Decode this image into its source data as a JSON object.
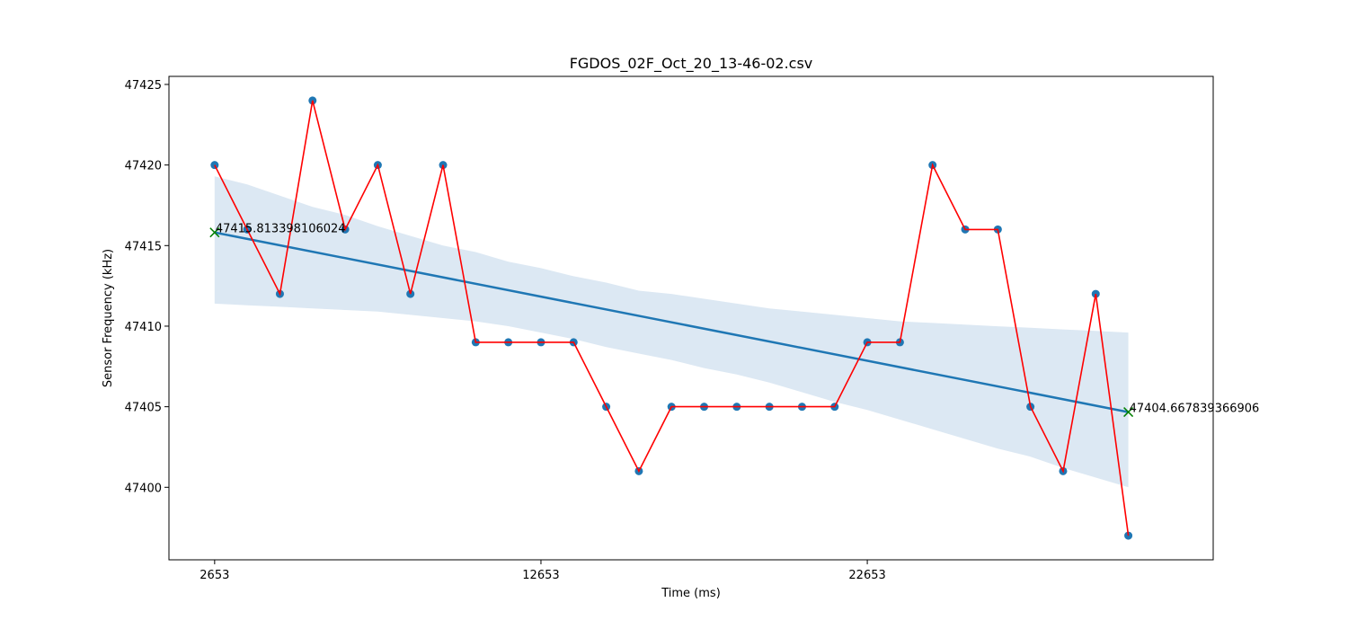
{
  "chart_data": {
    "type": "line",
    "title": "FGDOS_02F_Oct_20_13-46-02.csv",
    "xlabel": "Time (ms)",
    "ylabel": "Sensor Frequency (kHz)",
    "xlim": [
      1253,
      33253
    ],
    "ylim": [
      47395.5,
      47425.5
    ],
    "xticks": [
      2653,
      12653,
      22653
    ],
    "yticks": [
      47400,
      47405,
      47410,
      47415,
      47420,
      47425
    ],
    "x": [
      2653,
      3653,
      4653,
      5653,
      6653,
      7653,
      8653,
      9653,
      10653,
      11653,
      12653,
      13653,
      14653,
      15653,
      16653,
      17653,
      18653,
      19653,
      20653,
      21653,
      22653,
      23653,
      24653,
      25653,
      26653,
      27653,
      28653,
      29653,
      30653
    ],
    "series": [
      {
        "values": [
          47420,
          47416,
          47412,
          47424,
          47416,
          47420,
          47412,
          47420,
          47409,
          47409,
          47409,
          47409,
          47405,
          47401,
          47405,
          47405,
          47405,
          47405,
          47405,
          47405,
          47409,
          47409,
          47420,
          47416,
          47416,
          47405,
          47401,
          47412,
          47397
        ],
        "point_color": "#1f77b4",
        "line_color": "#ff0000"
      }
    ],
    "regression": {
      "start": {
        "x": 2653,
        "y": 47415.813398106024
      },
      "end": {
        "x": 30653,
        "y": 47404.667839366906
      },
      "line_color": "#1f77b4",
      "band_color": "#dce8f3",
      "band_upper": [
        47419.3,
        47418.8,
        47418.1,
        47417.4,
        47416.9,
        47416.2,
        47415.6,
        47415.0,
        47414.6,
        47414.0,
        47413.6,
        47413.1,
        47412.7,
        47412.2,
        47412.0,
        47411.7,
        47411.4,
        47411.1,
        47410.9,
        47410.7,
        47410.5,
        47410.3,
        47410.2,
        47410.1,
        47409.99,
        47409.9,
        47409.8,
        47409.7,
        47409.6
      ],
      "band_lower": [
        47411.4,
        47411.3,
        47411.2,
        47411.1,
        47411.0,
        47410.9,
        47410.7,
        47410.5,
        47410.3,
        47410.0,
        47409.6,
        47409.2,
        47408.7,
        47408.3,
        47407.9,
        47407.4,
        47407.0,
        47406.5,
        47405.9,
        47405.3,
        47404.8,
        47404.2,
        47403.6,
        47403.0,
        47402.4,
        47401.9,
        47401.2,
        47400.6,
        47400.0
      ]
    },
    "markers": [
      {
        "x": 2653,
        "y": 47415.813398106024,
        "label": "47415.813398106024",
        "color": "#008000"
      },
      {
        "x": 30653,
        "y": 47404.667839366906,
        "label": "47404.667839366906",
        "color": "#008000"
      }
    ]
  }
}
